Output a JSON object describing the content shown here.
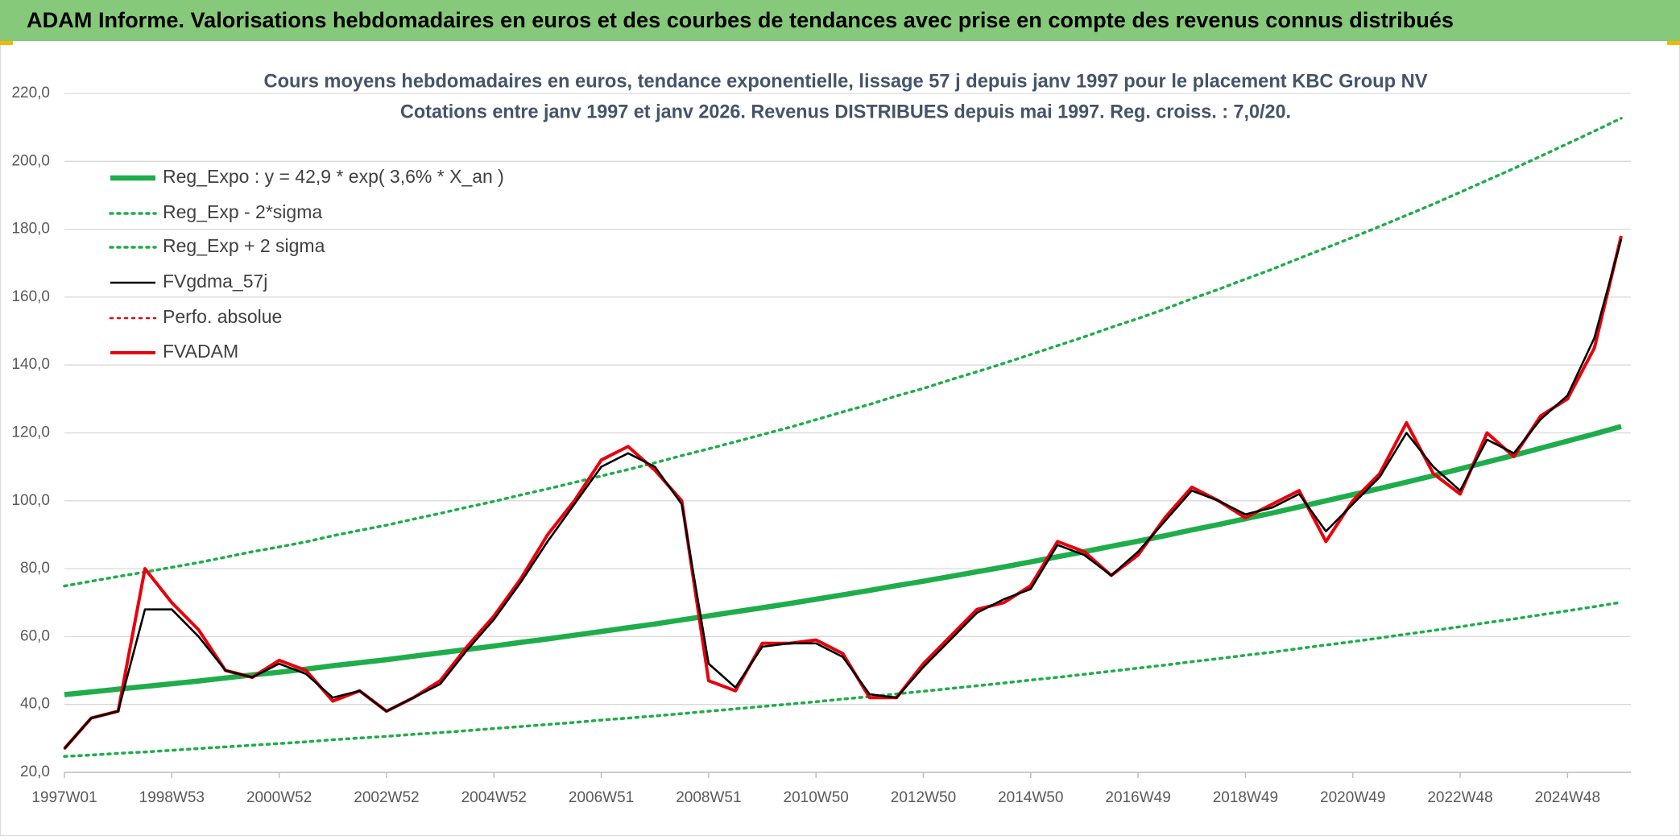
{
  "header": {
    "title": "ADAM Informe. Valorisations hebdomadaires en euros et des courbes de tendances avec prise en compte des revenus connus distribués"
  },
  "chart_data": {
    "type": "line",
    "title": "Cours moyens hebdomadaires en euros, tendance exponentielle, lissage 57 j depuis janv 1997 pour le placement KBC Group NV",
    "subtitle": "Cotations entre janv 1997 et janv 2026. Revenus DISTRIBUES depuis mai 1997. Reg. croiss. : 7,0/20.",
    "categories": [
      "1997W01",
      null,
      null,
      null,
      "1998W53",
      null,
      null,
      null,
      "2000W52",
      null,
      null,
      null,
      "2002W52",
      null,
      null,
      null,
      "2004W52",
      null,
      null,
      null,
      "2006W51",
      null,
      null,
      null,
      "2008W51",
      null,
      null,
      null,
      "2010W50",
      null,
      null,
      null,
      "2012W50",
      null,
      null,
      null,
      "2014W50",
      null,
      null,
      null,
      "2016W49",
      null,
      null,
      null,
      "2018W49",
      null,
      null,
      null,
      "2020W49",
      null,
      null,
      null,
      "2022W48",
      null,
      null,
      null,
      "2024W48",
      null,
      null
    ],
    "ylim": [
      20,
      220
    ],
    "yticks": [
      {
        "value": 20,
        "label": "20,0"
      },
      {
        "value": 40,
        "label": "40,0"
      },
      {
        "value": 60,
        "label": "60,0"
      },
      {
        "value": 80,
        "label": "80,0"
      },
      {
        "value": 100,
        "label": "100,0"
      },
      {
        "value": 120,
        "label": "120,0"
      },
      {
        "value": 140,
        "label": "140,0"
      },
      {
        "value": 160,
        "label": "160,0"
      },
      {
        "value": 180,
        "label": "180,0"
      },
      {
        "value": 200,
        "label": "200,0"
      },
      {
        "value": 220,
        "label": "220,0"
      }
    ],
    "grid": true,
    "legend": "top-left",
    "series": [
      {
        "name": "Reg_Expo : y = 42,9 * exp( 3,6% *  X_an )",
        "color": "#1fad4b",
        "style": "solid",
        "values": [
          42.9,
          43.7,
          44.5,
          45.3,
          46.1,
          46.9,
          47.8,
          48.7,
          49.5,
          50.4,
          51.4,
          52.3,
          53.2,
          54.2,
          55.2,
          56.2,
          57.2,
          58.3,
          59.3,
          60.4,
          61.5,
          62.6,
          63.7,
          64.9,
          66.1,
          67.3,
          68.5,
          69.7,
          71.0,
          72.3,
          73.6,
          75.0,
          76.3,
          77.7,
          79.1,
          80.5,
          82.0,
          83.5,
          85.0,
          86.6,
          88.1,
          89.7,
          91.4,
          93.0,
          94.7,
          96.4,
          98.2,
          100.0,
          101.8,
          103.6,
          105.5,
          107.4,
          109.4,
          111.4,
          113.4,
          115.5,
          117.6,
          119.7,
          121.9
        ]
      },
      {
        "name": "Reg_Exp - 2*sigma",
        "color": "#1fad4b",
        "style": "dotted",
        "values": [
          24.7,
          25.1,
          25.6,
          26.0,
          26.5,
          27.0,
          27.5,
          28.0,
          28.5,
          29.0,
          29.6,
          30.1,
          30.6,
          31.2,
          31.7,
          32.3,
          32.9,
          33.5,
          34.1,
          34.7,
          35.4,
          36.0,
          36.6,
          37.3,
          38.0,
          38.7,
          39.4,
          40.1,
          40.8,
          41.6,
          42.3,
          43.1,
          43.9,
          44.7,
          45.5,
          46.3,
          47.2,
          48.0,
          48.9,
          49.8,
          50.7,
          51.6,
          52.6,
          53.5,
          54.5,
          55.4,
          56.5,
          57.5,
          58.5,
          59.6,
          60.7,
          61.8,
          62.9,
          64.1,
          65.2,
          66.4,
          67.6,
          68.8,
          70.1
        ]
      },
      {
        "name": "Reg_Exp + 2 sigma",
        "color": "#1fad4b",
        "style": "dotted",
        "values": [
          74.9,
          76.3,
          77.7,
          79.0,
          80.4,
          81.8,
          83.4,
          85.0,
          86.4,
          87.9,
          89.7,
          91.3,
          92.8,
          94.6,
          96.3,
          98.1,
          99.8,
          101.7,
          103.5,
          105.4,
          107.3,
          109.2,
          111.2,
          113.3,
          115.3,
          117.4,
          119.5,
          121.6,
          123.9,
          126.2,
          128.4,
          130.9,
          133.1,
          135.6,
          138.0,
          140.5,
          143.1,
          145.7,
          148.3,
          151.1,
          153.7,
          156.5,
          159.5,
          162.3,
          165.3,
          168.2,
          171.4,
          174.5,
          177.6,
          180.8,
          184.1,
          187.4,
          190.9,
          194.4,
          197.9,
          201.5,
          205.2,
          208.9,
          212.7
        ]
      },
      {
        "name": "FVgdma_57j",
        "color": "#000000",
        "style": "solid",
        "values": [
          27,
          36,
          38,
          68,
          68,
          60,
          50,
          48,
          52,
          49,
          42,
          44,
          38,
          42,
          46,
          56,
          65,
          76,
          88,
          99,
          110,
          114,
          110,
          99,
          52,
          45,
          57,
          58,
          58,
          54,
          43,
          42,
          51,
          59,
          67,
          71,
          74,
          87,
          84,
          78,
          85,
          94,
          103,
          100,
          96,
          98,
          102,
          91,
          99,
          107,
          120,
          110,
          103,
          118,
          114,
          124,
          131,
          148,
          177
        ]
      },
      {
        "name": "Perfo. absolue",
        "color": "#e8000b",
        "style": "dotted",
        "values": [
          27,
          36,
          38,
          80,
          70,
          62,
          50,
          48,
          53,
          50,
          41,
          44,
          38,
          42,
          47,
          57,
          66,
          77,
          90,
          100,
          112,
          116,
          109,
          100,
          47,
          44,
          58,
          58,
          59,
          55,
          42,
          42,
          52,
          60,
          68,
          70,
          75,
          88,
          85,
          78,
          84,
          95,
          104,
          100,
          95,
          99,
          103,
          88,
          100,
          108,
          123,
          108,
          102,
          120,
          113,
          125,
          130,
          145,
          178
        ]
      },
      {
        "name": "FVADAM",
        "color": "#e8000b",
        "style": "solid",
        "values": [
          27,
          36,
          38,
          80,
          70,
          62,
          50,
          48,
          53,
          50,
          41,
          44,
          38,
          42,
          47,
          57,
          66,
          77,
          90,
          100,
          112,
          116,
          109,
          100,
          47,
          44,
          58,
          58,
          59,
          55,
          42,
          42,
          52,
          60,
          68,
          70,
          75,
          88,
          85,
          78,
          84,
          95,
          104,
          100,
          95,
          99,
          103,
          88,
          100,
          108,
          123,
          108,
          102,
          120,
          113,
          125,
          130,
          145,
          178
        ]
      }
    ]
  }
}
